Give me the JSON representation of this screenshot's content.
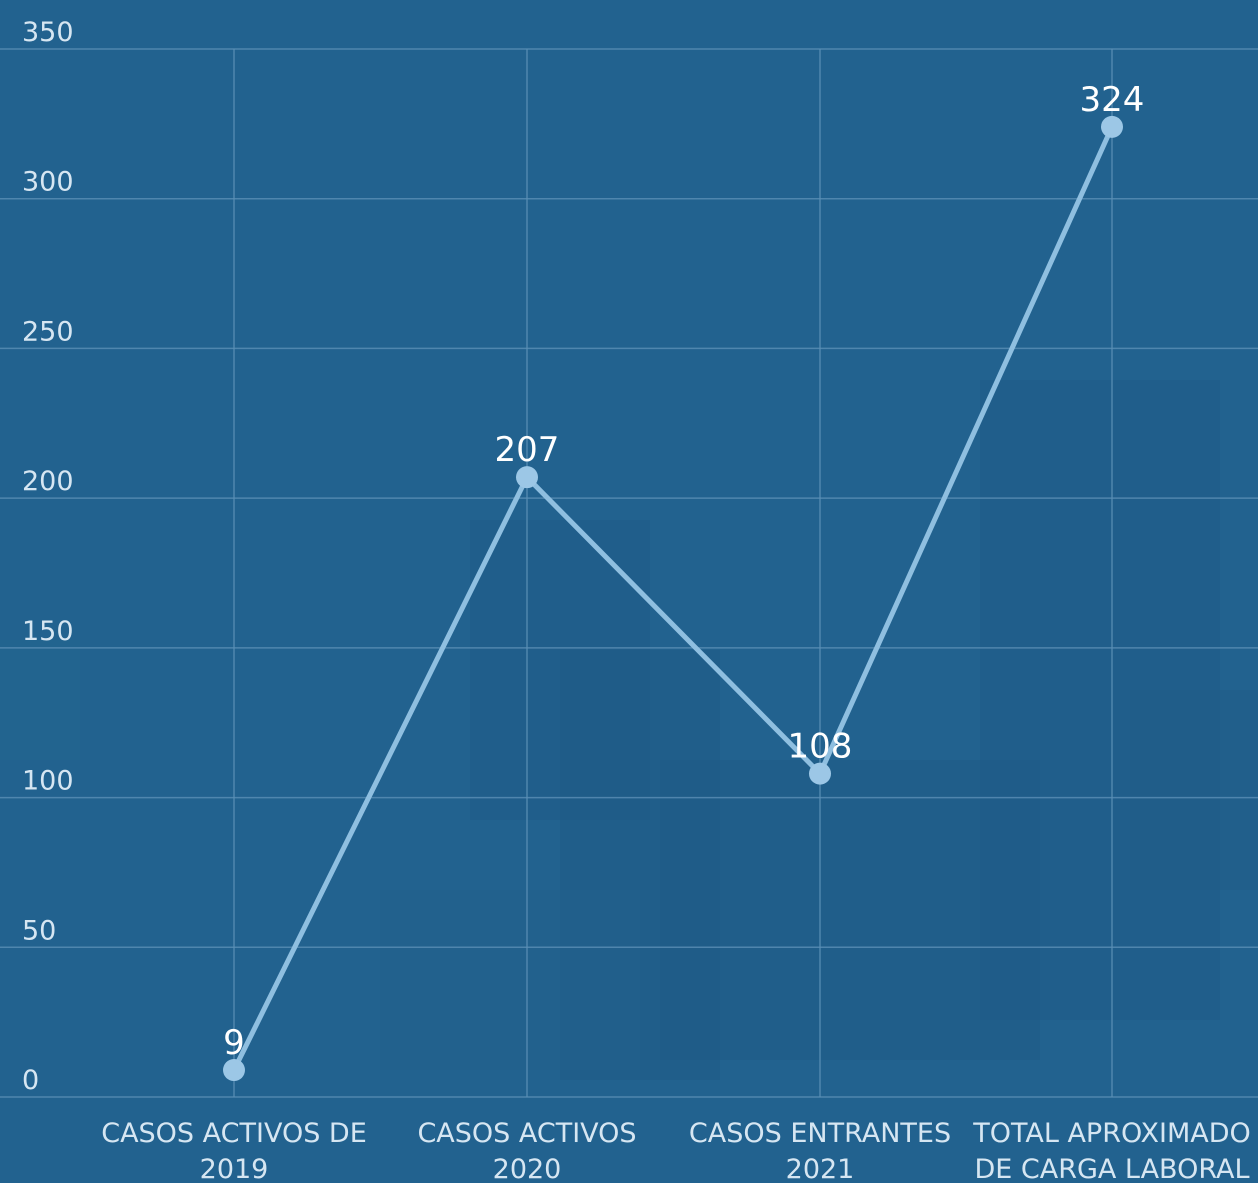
{
  "chart_data": {
    "type": "line",
    "categories": [
      [
        "CASOS ACTIVOS DE",
        "2019"
      ],
      [
        "CASOS ACTIVOS",
        "2020"
      ],
      [
        "CASOS ENTRANTES",
        "2021"
      ],
      [
        "TOTAL APROXIMADO",
        "DE CARGA LABORAL"
      ]
    ],
    "series": [
      {
        "values": [
          9,
          207,
          108,
          324
        ]
      }
    ],
    "data_labels": [
      "9",
      "207",
      "108",
      "324"
    ],
    "yticks": [
      0,
      50,
      100,
      150,
      200,
      250,
      300,
      350
    ],
    "ylim": [
      0,
      350
    ],
    "grid": true,
    "title": "",
    "xlabel": "",
    "ylabel": "",
    "colors": {
      "background": "#22628f",
      "line": "#8fbfe0",
      "marker": "#9cc7e6",
      "grid": "#5b8fb6",
      "text": "#d6e6f2",
      "data_label": "#ffffff"
    }
  }
}
